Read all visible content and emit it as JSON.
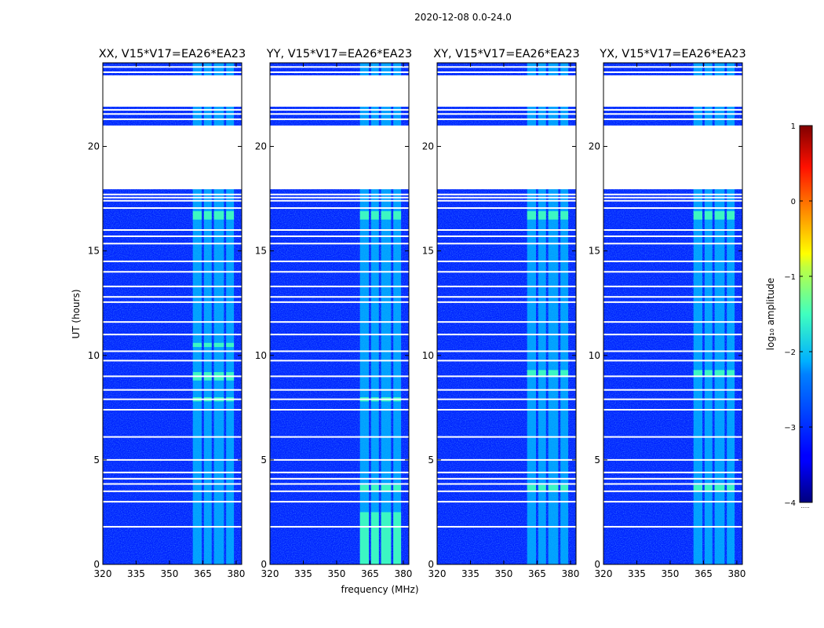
{
  "figure": {
    "suptitle": "2020-12-08 0.0-24.0",
    "xlabel": "frequency (MHz)",
    "ylabel": "UT (hours)"
  },
  "colorbar": {
    "label": "log₁₀ amplitude",
    "min": -4,
    "max": 1,
    "ticks": [
      "1",
      "0",
      "−1",
      "−2",
      "−3",
      "−4"
    ],
    "tick_values": [
      1,
      0,
      -1,
      -2,
      -3,
      -4
    ],
    "colormap": "jet",
    "footer": "....."
  },
  "chart_data": {
    "type": "heatmap",
    "x_range_mhz": [
      320,
      382.5
    ],
    "y_range_hours": [
      0,
      24
    ],
    "x_ticks": [
      320,
      335,
      350,
      365,
      380
    ],
    "x_tick_labels": [
      "320",
      "335",
      "350",
      "365",
      "380"
    ],
    "y_ticks": [
      0,
      5,
      10,
      15,
      20
    ],
    "y_tick_labels": [
      "0",
      "5",
      "10",
      "15",
      "20"
    ],
    "background_level": -3.2,
    "rfi_band_mhz": [
      [
        360.5,
        364.5
      ],
      [
        365.5,
        369
      ],
      [
        370,
        374.5
      ],
      [
        375.5,
        379
      ]
    ],
    "flagged_blocks_hours": [
      [
        17.95,
        21.0
      ],
      [
        21.9,
        23.4
      ],
      [
        20.1,
        20.3
      ]
    ],
    "flagged_lines_hours": [
      23.8,
      23.55,
      21.75,
      21.55,
      21.3,
      20.95,
      20.5,
      20.0,
      19.8,
      17.7,
      17.55,
      17.4,
      17.05,
      16.0,
      15.7,
      15.35,
      14.5,
      14.0,
      13.3,
      12.8,
      12.55,
      11.6,
      11.0,
      10.2,
      9.75,
      9.0,
      8.35,
      7.9,
      7.4,
      6.1,
      5.0,
      4.4,
      4.1,
      3.85,
      3.5,
      3.0,
      1.8
    ],
    "panels": [
      {
        "title": "XX, V15*V17=EA26*EA23",
        "bright_hours": [
          [
            16.5,
            16.9
          ],
          [
            10.4,
            10.6
          ],
          [
            8.8,
            9.2
          ],
          [
            7.8,
            8.0
          ]
        ]
      },
      {
        "title": "YY, V15*V17=EA26*EA23",
        "bright_hours": [
          [
            16.5,
            16.9
          ],
          [
            7.8,
            8.0
          ],
          [
            3.5,
            3.8
          ],
          [
            0.0,
            2.5
          ]
        ]
      },
      {
        "title": "XY, V15*V17=EA26*EA23",
        "bright_hours": [
          [
            16.5,
            16.9
          ],
          [
            9.0,
            9.3
          ],
          [
            3.5,
            3.8
          ]
        ]
      },
      {
        "title": "YX, V15*V17=EA26*EA23",
        "bright_hours": [
          [
            16.5,
            16.9
          ],
          [
            9.0,
            9.3
          ],
          [
            3.5,
            3.8
          ]
        ]
      }
    ]
  }
}
